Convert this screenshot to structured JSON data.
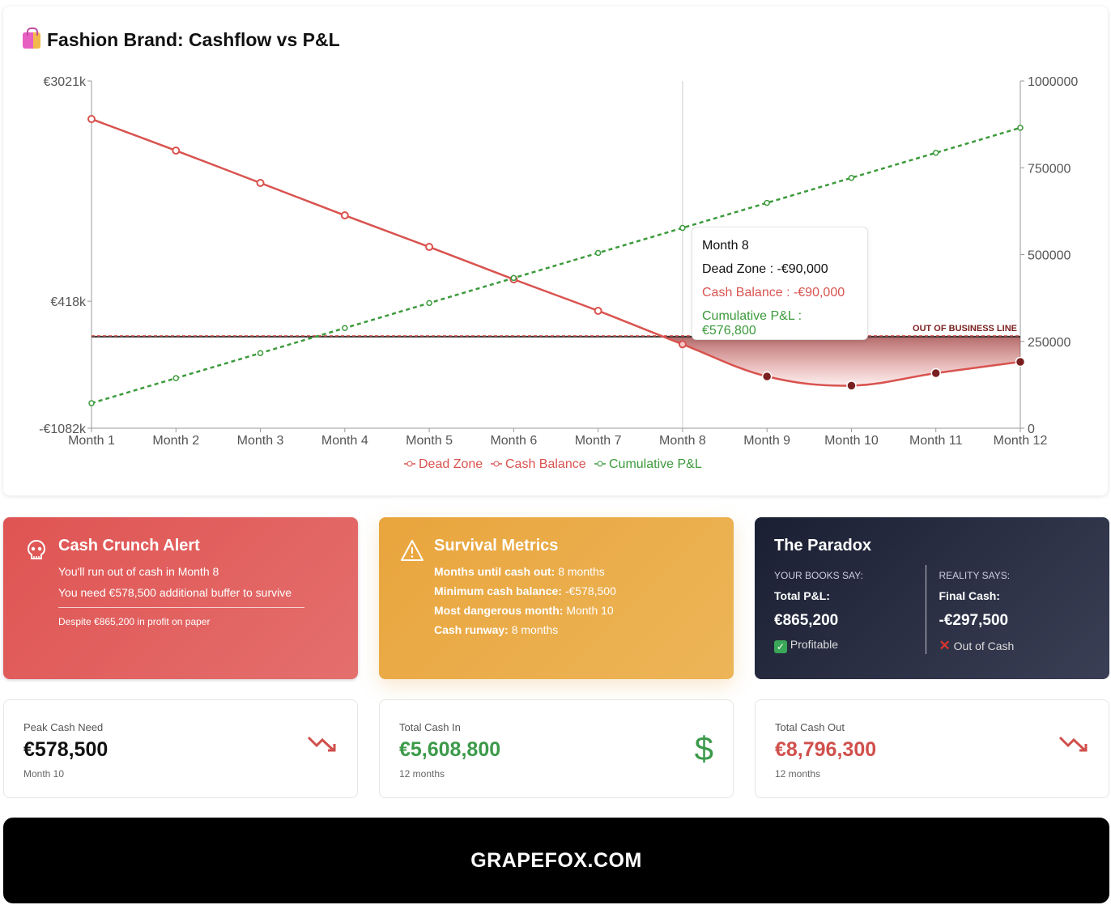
{
  "title": "Fashion Brand: Cashflow vs P&L",
  "chart_data": {
    "type": "line",
    "title": "Fashion Brand: Cashflow vs P&L",
    "categories": [
      "Month 1",
      "Month 2",
      "Month 3",
      "Month 4",
      "Month 5",
      "Month 6",
      "Month 7",
      "Month 8",
      "Month 9",
      "Month 10",
      "Month 11",
      "Month 12"
    ],
    "series": [
      {
        "name": "Dead Zone",
        "axis": "left",
        "color": "#d9534f",
        "values": [
          0,
          0,
          0,
          0,
          0,
          0,
          0,
          -90000,
          -470000,
          -578500,
          -432000,
          -297500
        ]
      },
      {
        "name": "Cash Balance",
        "axis": "left",
        "color": "#d9534f",
        "values": [
          2571000,
          2198000,
          1816000,
          1433000,
          1060000,
          677000,
          305000,
          -90000,
          -470000,
          -578500,
          -432000,
          -297500
        ]
      },
      {
        "name": "Cumulative P&L",
        "axis": "right",
        "color": "#3c9a3c",
        "values": [
          72100,
          144200,
          216300,
          288400,
          360500,
          432600,
          504700,
          576800,
          648900,
          721000,
          793100,
          865200
        ]
      }
    ],
    "left_axis": {
      "ylim": [
        -1082000,
        3021000
      ],
      "tick_labels": [
        "€3021k",
        "€418k",
        "-€1082k"
      ],
      "tick_values": [
        3021000,
        418000,
        -1082000
      ]
    },
    "right_axis": {
      "ylim": [
        0,
        1000000
      ],
      "tick_labels": [
        "0",
        "250000",
        "500000",
        "750000",
        "1000000"
      ],
      "tick_values": [
        0,
        250000,
        500000,
        750000,
        1000000
      ]
    },
    "annotation": "OUT OF BUSINESS LINE",
    "legend_position": "bottom",
    "tooltip": {
      "title": "Month 8",
      "lines": [
        "Dead Zone : -€90,000",
        "Cash Balance : -€90,000",
        "Cumulative P&L : €576,800"
      ]
    }
  },
  "alert": {
    "title": "Cash Crunch Alert",
    "line1": "You'll run out of cash in Month 8",
    "line2": "You need €578,500 additional buffer to survive",
    "note": "Despite €865,200 in profit on paper"
  },
  "survival": {
    "title": "Survival Metrics",
    "rows": [
      {
        "k": "Months until cash out:",
        "v": " 8 months"
      },
      {
        "k": "Minimum cash balance:",
        "v": " -€578,500"
      },
      {
        "k": "Most dangerous month:",
        "v": " Month 10"
      },
      {
        "k": "Cash runway:",
        "v": " 8 months"
      }
    ]
  },
  "paradox": {
    "title": "The Paradox",
    "left": {
      "cap": "YOUR BOOKS SAY:",
      "label": "Total P&L:",
      "value": "€865,200",
      "status": "Profitable"
    },
    "right": {
      "cap": "REALITY SAYS:",
      "label": "Final Cash:",
      "value": "-€297,500",
      "status": "Out of Cash"
    }
  },
  "stats": [
    {
      "label": "Peak Cash Need",
      "value": "€578,500",
      "sub": "Month 10",
      "color": "#111111",
      "icon": "trend-down-icon"
    },
    {
      "label": "Total Cash In",
      "value": "€5,608,800",
      "sub": "12 months",
      "color": "#3c9a4a",
      "icon": "dollar-icon"
    },
    {
      "label": "Total Cash Out",
      "value": "€8,796,300",
      "sub": "12 months",
      "color": "#d0504c",
      "icon": "trend-down-icon"
    }
  ],
  "footer": "GRAPEFOX.COM"
}
